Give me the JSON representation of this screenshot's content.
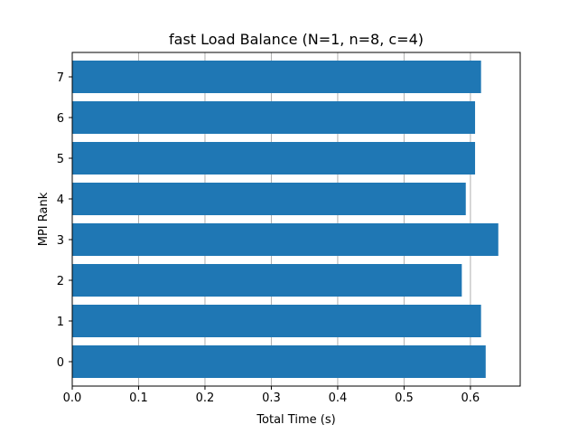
{
  "chart_data": {
    "type": "bar",
    "orientation": "horizontal",
    "title": "fast Load Balance (N=1, n=8, c=4)",
    "xlabel": "Total Time (s)",
    "ylabel": "MPI Rank",
    "categories": [
      "0",
      "1",
      "2",
      "3",
      "4",
      "5",
      "6",
      "7"
    ],
    "values": [
      0.623,
      0.616,
      0.587,
      0.642,
      0.593,
      0.607,
      0.607,
      0.616
    ],
    "xlim": [
      0.0,
      0.675
    ],
    "xticks": [
      0.0,
      0.1,
      0.2,
      0.3,
      0.4,
      0.5,
      0.6
    ],
    "xtick_labels": [
      "0.0",
      "0.1",
      "0.2",
      "0.3",
      "0.4",
      "0.5",
      "0.6"
    ],
    "grid": "vertical",
    "bar_color": "#1f77b4",
    "grid_color": "#b0b0b0"
  }
}
